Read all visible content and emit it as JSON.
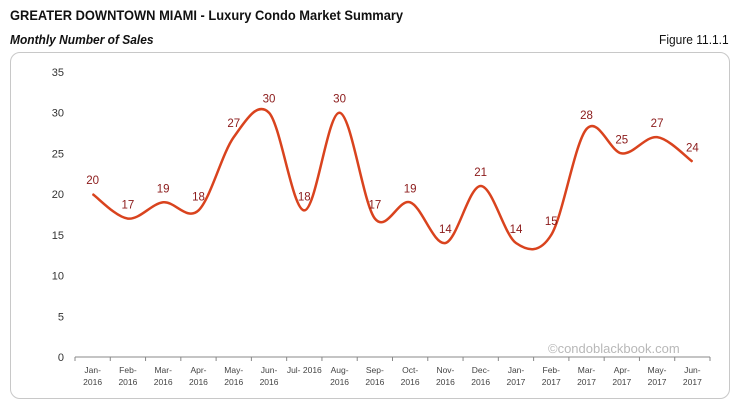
{
  "header": {
    "title": "GREATER DOWNTOWN MIAMI - Luxury Condo Market Summary",
    "subtitle": "Monthly Number of Sales",
    "figure": "Figure 11.1.1"
  },
  "watermark": "©condoblackbook.com",
  "chart_data": {
    "type": "line",
    "smooth": true,
    "categories": [
      [
        "Jan-",
        "2016"
      ],
      [
        "Feb-",
        "2016"
      ],
      [
        "Mar-",
        "2016"
      ],
      [
        "Apr-",
        "2016"
      ],
      [
        "May-",
        "2016"
      ],
      [
        "Jun-",
        "2016"
      ],
      [
        "Jul- 2016",
        ""
      ],
      [
        "Aug-",
        "2016"
      ],
      [
        "Sep-",
        "2016"
      ],
      [
        "Oct-",
        "2016"
      ],
      [
        "Nov-",
        "2016"
      ],
      [
        "Dec-",
        "2016"
      ],
      [
        "Jan-",
        "2017"
      ],
      [
        "Feb-",
        "2017"
      ],
      [
        "Mar-",
        "2017"
      ],
      [
        "Apr-",
        "2017"
      ],
      [
        "May-",
        "2017"
      ],
      [
        "Jun-",
        "2017"
      ]
    ],
    "values": [
      20,
      17,
      19,
      18,
      27,
      30,
      18,
      30,
      17,
      19,
      14,
      21,
      14,
      15,
      28,
      25,
      27,
      24
    ],
    "ylim": [
      0,
      35
    ],
    "yticks": [
      0,
      5,
      10,
      15,
      20,
      25,
      30,
      35
    ],
    "grid": false,
    "line_color": "#d9431e",
    "label_color": "#8b1a1a"
  }
}
